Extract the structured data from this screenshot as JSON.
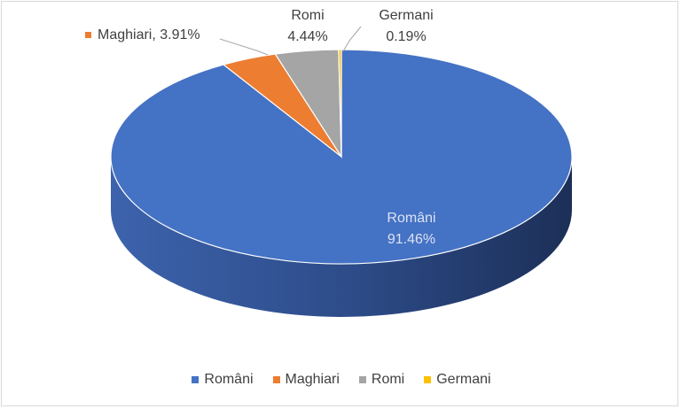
{
  "chart_data": {
    "type": "pie",
    "style": "3d",
    "title": "",
    "categories": [
      "Români",
      "Maghiari",
      "Romi",
      "Germani"
    ],
    "values": [
      91.46,
      3.91,
      4.44,
      0.19
    ],
    "labels": {
      "romani": {
        "name": "Români",
        "value": "91.46%"
      },
      "maghiari": {
        "name": "Maghiari",
        "sep": ", ",
        "value": "3.91%"
      },
      "romi": {
        "name": "Romi",
        "value": "4.44%"
      },
      "germani": {
        "name": "Germani",
        "value": "0.19%"
      }
    },
    "colors": [
      "#4472c4",
      "#ed7d31",
      "#a5a5a5",
      "#ffc000"
    ],
    "legend_position": "bottom",
    "legend": [
      "Români",
      "Maghiari",
      "Romi",
      "Germani"
    ]
  }
}
